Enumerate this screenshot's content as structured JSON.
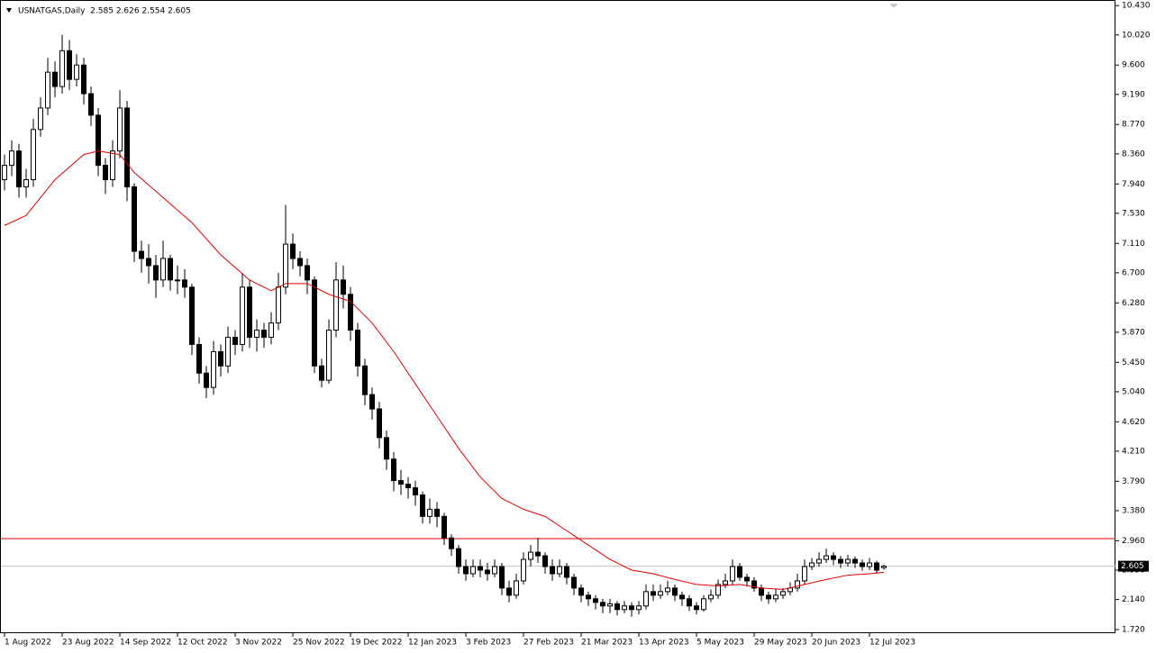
{
  "chart_data": {
    "type": "candlestick",
    "title": "USNATGAS,Daily  2.585 2.626 2.554 2.605",
    "ylim": [
      1.67,
      10.47
    ],
    "yticks": [
      {
        "value": 10.43,
        "label": "10.430"
      },
      {
        "value": 10.02,
        "label": "10.020"
      },
      {
        "value": 9.6,
        "label": "9.600"
      },
      {
        "value": 9.19,
        "label": "9.190"
      },
      {
        "value": 8.77,
        "label": "8.770"
      },
      {
        "value": 8.36,
        "label": "8.360"
      },
      {
        "value": 7.94,
        "label": "7.940"
      },
      {
        "value": 7.53,
        "label": "7.530"
      },
      {
        "value": 7.11,
        "label": "7.110"
      },
      {
        "value": 6.7,
        "label": "6.700"
      },
      {
        "value": 6.28,
        "label": "6.280"
      },
      {
        "value": 5.87,
        "label": "5.870"
      },
      {
        "value": 5.45,
        "label": "5.450"
      },
      {
        "value": 5.04,
        "label": "5.040"
      },
      {
        "value": 4.62,
        "label": "4.620"
      },
      {
        "value": 4.21,
        "label": "4.210"
      },
      {
        "value": 3.79,
        "label": "3.790"
      },
      {
        "value": 3.38,
        "label": "3.380"
      },
      {
        "value": 2.96,
        "label": "2.960"
      },
      {
        "value": 2.55,
        "label": "2.550"
      },
      {
        "value": 2.14,
        "label": "2.140"
      },
      {
        "value": 1.72,
        "label": "1.720"
      }
    ],
    "categories": [
      "1 Aug 2022",
      null,
      null,
      null,
      null,
      null,
      null,
      null,
      "23 Aug 2022",
      null,
      null,
      null,
      null,
      null,
      null,
      null,
      "14 Sep 2022",
      null,
      null,
      null,
      null,
      null,
      null,
      null,
      "12 Oct 2022",
      null,
      null,
      null,
      null,
      null,
      null,
      null,
      "3 Nov 2022",
      null,
      null,
      null,
      null,
      null,
      null,
      null,
      "25 Nov 2022",
      null,
      null,
      null,
      null,
      null,
      null,
      null,
      "19 Dec 2022",
      null,
      null,
      null,
      null,
      null,
      null,
      null,
      "12 Jan 2023",
      null,
      null,
      null,
      null,
      null,
      null,
      null,
      "3 Feb 2023",
      null,
      null,
      null,
      null,
      null,
      null,
      null,
      "27 Feb 2023",
      null,
      null,
      null,
      null,
      null,
      null,
      null,
      "21 Mar 2023",
      null,
      null,
      null,
      null,
      null,
      null,
      null,
      "13 Apr 2023",
      null,
      null,
      null,
      null,
      null,
      null,
      null,
      "5 May 2023",
      null,
      null,
      null,
      null,
      null,
      null,
      null,
      "29 May 2023",
      null,
      null,
      null,
      null,
      null,
      null,
      null,
      "20 Jun 2023",
      null,
      null,
      null,
      null,
      null,
      null,
      null,
      "12 Jul 2023",
      null,
      null
    ],
    "candles": [
      [
        8.0,
        8.35,
        7.85,
        8.2
      ],
      [
        8.2,
        8.55,
        8.05,
        8.4
      ],
      [
        8.4,
        8.5,
        7.75,
        7.9
      ],
      [
        7.9,
        8.15,
        7.75,
        8.0
      ],
      [
        8.0,
        8.85,
        7.9,
        8.7
      ],
      [
        8.7,
        9.15,
        8.6,
        9.0
      ],
      [
        9.0,
        9.7,
        8.9,
        9.5
      ],
      [
        9.5,
        9.65,
        9.15,
        9.3
      ],
      [
        9.3,
        10.02,
        9.2,
        9.8
      ],
      [
        9.8,
        9.95,
        9.25,
        9.4
      ],
      [
        9.4,
        9.75,
        9.3,
        9.6
      ],
      [
        9.6,
        9.7,
        9.05,
        9.2
      ],
      [
        9.2,
        9.3,
        8.75,
        8.9
      ],
      [
        8.9,
        9.0,
        8.05,
        8.2
      ],
      [
        8.2,
        8.3,
        7.8,
        8.0
      ],
      [
        8.0,
        8.55,
        7.9,
        8.4
      ],
      [
        8.4,
        9.25,
        8.3,
        9.0
      ],
      [
        9.0,
        9.1,
        7.7,
        7.9
      ],
      [
        7.9,
        7.95,
        6.85,
        7.0
      ],
      [
        7.0,
        7.15,
        6.7,
        6.9
      ],
      [
        6.9,
        7.1,
        6.55,
        6.8
      ],
      [
        6.8,
        6.95,
        6.35,
        6.6
      ],
      [
        6.6,
        7.15,
        6.5,
        6.9
      ],
      [
        6.9,
        6.95,
        6.45,
        6.6
      ],
      [
        6.6,
        6.8,
        6.4,
        6.6
      ],
      [
        6.6,
        6.75,
        6.35,
        6.5
      ],
      [
        6.5,
        6.55,
        5.55,
        5.7
      ],
      [
        5.7,
        5.8,
        5.15,
        5.3
      ],
      [
        5.3,
        5.4,
        4.95,
        5.1
      ],
      [
        5.1,
        5.75,
        5.0,
        5.6
      ],
      [
        5.6,
        5.7,
        5.25,
        5.4
      ],
      [
        5.4,
        5.95,
        5.3,
        5.8
      ],
      [
        5.8,
        5.9,
        5.55,
        5.7
      ],
      [
        5.7,
        6.7,
        5.6,
        6.5
      ],
      [
        6.5,
        6.6,
        5.65,
        5.8
      ],
      [
        5.8,
        6.05,
        5.6,
        5.9
      ],
      [
        5.9,
        6.0,
        5.65,
        5.8
      ],
      [
        5.8,
        6.15,
        5.7,
        6.0
      ],
      [
        6.0,
        6.7,
        5.9,
        6.5
      ],
      [
        6.5,
        7.65,
        6.4,
        7.1
      ],
      [
        7.1,
        7.25,
        6.75,
        6.9
      ],
      [
        6.9,
        7.0,
        6.65,
        6.8
      ],
      [
        6.8,
        6.9,
        6.4,
        6.6
      ],
      [
        6.6,
        6.65,
        5.3,
        5.4
      ],
      [
        5.4,
        5.5,
        5.1,
        5.2
      ],
      [
        5.2,
        6.05,
        5.15,
        5.9
      ],
      [
        5.9,
        6.85,
        5.8,
        6.6
      ],
      [
        6.6,
        6.8,
        6.2,
        6.4
      ],
      [
        6.4,
        6.5,
        5.75,
        5.9
      ],
      [
        5.9,
        6.0,
        5.25,
        5.4
      ],
      [
        5.4,
        5.5,
        4.85,
        5.0
      ],
      [
        5.0,
        5.1,
        4.65,
        4.8
      ],
      [
        4.8,
        4.9,
        4.25,
        4.4
      ],
      [
        4.4,
        4.5,
        3.95,
        4.1
      ],
      [
        4.1,
        4.2,
        3.65,
        3.8
      ],
      [
        3.8,
        3.95,
        3.6,
        3.75
      ],
      [
        3.75,
        3.85,
        3.55,
        3.7
      ],
      [
        3.7,
        3.8,
        3.45,
        3.6
      ],
      [
        3.6,
        3.65,
        3.2,
        3.3
      ],
      [
        3.3,
        3.55,
        3.2,
        3.4
      ],
      [
        3.4,
        3.5,
        3.15,
        3.3
      ],
      [
        3.3,
        3.35,
        2.9,
        3.0
      ],
      [
        3.0,
        3.05,
        2.75,
        2.85
      ],
      [
        2.85,
        2.9,
        2.5,
        2.6
      ],
      [
        2.6,
        2.7,
        2.4,
        2.5
      ],
      [
        2.5,
        2.7,
        2.45,
        2.6
      ],
      [
        2.6,
        2.7,
        2.45,
        2.55
      ],
      [
        2.55,
        2.65,
        2.4,
        2.5
      ],
      [
        2.5,
        2.7,
        2.45,
        2.6
      ],
      [
        2.6,
        2.65,
        2.2,
        2.3
      ],
      [
        2.3,
        2.4,
        2.1,
        2.2
      ],
      [
        2.2,
        2.5,
        2.15,
        2.4
      ],
      [
        2.4,
        2.8,
        2.35,
        2.7
      ],
      [
        2.7,
        2.9,
        2.6,
        2.8
      ],
      [
        2.8,
        3.0,
        2.65,
        2.75
      ],
      [
        2.75,
        2.8,
        2.5,
        2.6
      ],
      [
        2.6,
        2.7,
        2.4,
        2.5
      ],
      [
        2.5,
        2.7,
        2.45,
        2.6
      ],
      [
        2.6,
        2.65,
        2.35,
        2.45
      ],
      [
        2.45,
        2.5,
        2.2,
        2.3
      ],
      [
        2.3,
        2.35,
        2.1,
        2.2
      ],
      [
        2.2,
        2.25,
        2.05,
        2.15
      ],
      [
        2.15,
        2.2,
        2.0,
        2.1
      ],
      [
        2.1,
        2.15,
        1.95,
        2.05
      ],
      [
        2.05,
        2.15,
        1.95,
        2.08
      ],
      [
        2.08,
        2.12,
        1.92,
        2.0
      ],
      [
        2.0,
        2.12,
        1.95,
        2.05
      ],
      [
        2.05,
        2.1,
        1.9,
        2.0
      ],
      [
        2.0,
        2.12,
        1.93,
        2.05
      ],
      [
        2.05,
        2.35,
        2.0,
        2.25
      ],
      [
        2.25,
        2.35,
        2.12,
        2.2
      ],
      [
        2.2,
        2.35,
        2.15,
        2.25
      ],
      [
        2.25,
        2.4,
        2.2,
        2.3
      ],
      [
        2.3,
        2.35,
        2.12,
        2.2
      ],
      [
        2.2,
        2.25,
        2.05,
        2.15
      ],
      [
        2.15,
        2.2,
        1.98,
        2.05
      ],
      [
        2.05,
        2.1,
        1.93,
        2.0
      ],
      [
        2.0,
        2.2,
        1.97,
        2.15
      ],
      [
        2.15,
        2.28,
        2.1,
        2.2
      ],
      [
        2.2,
        2.42,
        2.15,
        2.35
      ],
      [
        2.35,
        2.5,
        2.3,
        2.4
      ],
      [
        2.4,
        2.7,
        2.35,
        2.6
      ],
      [
        2.6,
        2.65,
        2.4,
        2.45
      ],
      [
        2.45,
        2.5,
        2.32,
        2.4
      ],
      [
        2.4,
        2.45,
        2.25,
        2.3
      ],
      [
        2.3,
        2.35,
        2.12,
        2.2
      ],
      [
        2.2,
        2.25,
        2.08,
        2.15
      ],
      [
        2.15,
        2.28,
        2.1,
        2.2
      ],
      [
        2.2,
        2.3,
        2.15,
        2.25
      ],
      [
        2.25,
        2.38,
        2.2,
        2.3
      ],
      [
        2.3,
        2.5,
        2.25,
        2.4
      ],
      [
        2.4,
        2.7,
        2.35,
        2.6
      ],
      [
        2.6,
        2.72,
        2.55,
        2.65
      ],
      [
        2.65,
        2.8,
        2.6,
        2.7
      ],
      [
        2.7,
        2.85,
        2.65,
        2.75
      ],
      [
        2.75,
        2.8,
        2.62,
        2.7
      ],
      [
        2.7,
        2.75,
        2.58,
        2.65
      ],
      [
        2.65,
        2.76,
        2.6,
        2.7
      ],
      [
        2.7,
        2.74,
        2.58,
        2.65
      ],
      [
        2.65,
        2.7,
        2.54,
        2.6
      ],
      [
        2.6,
        2.72,
        2.55,
        2.65
      ],
      [
        2.65,
        2.68,
        2.5,
        2.55
      ],
      [
        2.585,
        2.626,
        2.554,
        2.605
      ]
    ],
    "moving_average": {
      "color": "#e00000",
      "x": [
        0,
        3,
        7,
        11,
        13,
        16,
        18,
        22,
        26,
        30,
        34,
        37,
        39,
        42,
        45,
        48,
        51,
        54,
        57,
        60,
        63,
        66,
        69,
        72,
        75,
        78,
        81,
        84,
        87,
        90,
        93,
        96,
        99,
        102,
        105,
        108,
        111,
        114,
        117,
        120,
        122
      ],
      "values": [
        7.36,
        7.5,
        8.0,
        8.35,
        8.4,
        8.35,
        8.1,
        7.75,
        7.4,
        6.95,
        6.6,
        6.45,
        6.55,
        6.55,
        6.4,
        6.3,
        6.0,
        5.6,
        5.15,
        4.7,
        4.25,
        3.85,
        3.55,
        3.4,
        3.3,
        3.1,
        2.9,
        2.7,
        2.55,
        2.5,
        2.42,
        2.35,
        2.33,
        2.35,
        2.3,
        2.28,
        2.35,
        2.42,
        2.48,
        2.5,
        2.52
      ]
    },
    "horizontal_line": {
      "value": 2.99,
      "color": "#e00000"
    },
    "current_price": {
      "value": 2.605,
      "color": "#c0c0c0"
    }
  }
}
